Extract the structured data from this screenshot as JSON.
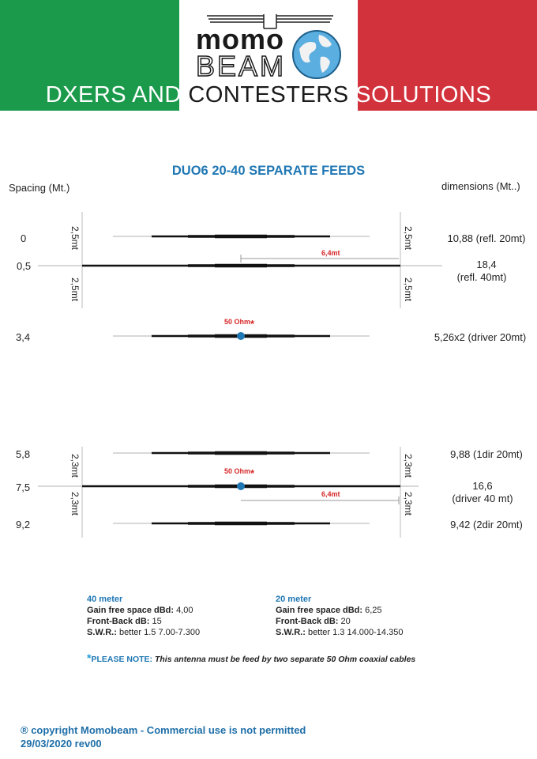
{
  "header": {
    "brand_top": "momo",
    "brand_bottom": "BEAM",
    "slogan_left": "DXERS AND ",
    "slogan_mid": "CONTESTERS",
    "slogan_right": " SOLUTIONS",
    "colors": {
      "green": "#1a9a4a",
      "white": "#ffffff",
      "red": "#d2323c"
    }
  },
  "title": "DUO6 20-40 SEPARATE FEEDS",
  "columns": {
    "left": "Spacing (Mt.)",
    "right": "dimensions (Mt..)"
  },
  "elements": [
    {
      "spacing": "0",
      "dimension": "10,88 (refl. 20mt)"
    },
    {
      "spacing": "0,5",
      "dimension": "18,4",
      "dimension2": "(refl. 40mt)"
    },
    {
      "spacing": "3,4",
      "dimension": "5,26x2 (driver 20mt)"
    },
    {
      "spacing": "5,8",
      "dimension": "9,88 (1dir 20mt)"
    },
    {
      "spacing": "7,5",
      "dimension": "16,6",
      "dimension2": "(driver 40 mt)"
    },
    {
      "spacing": "9,2",
      "dimension": "9,42 (2dir 20mt)"
    }
  ],
  "annotations": {
    "top_spacing": "2,5mt",
    "bottom_spacing": "2,3mt",
    "half_length": "6,4mt",
    "feed": "50 Ohm",
    "feed_mark": "*"
  },
  "specs40": {
    "heading": "40 meter",
    "gain_label": "Gain free space dBd:",
    "gain": " 4,00",
    "fb_label": "Front-Back dB:",
    "fb": " 15",
    "swr_label": "S.W.R.:",
    "swr": " better 1.5 7.00-7.300"
  },
  "specs20": {
    "heading": "20 meter",
    "gain_label": "Gain free space dBd:",
    "gain": " 6,25",
    "fb_label": "Front-Back dB:",
    "fb": " 20",
    "swr_label": "S.W.R.:",
    "swr": " better 1.3 14.000-14.350"
  },
  "note": {
    "mark": "*",
    "label": "PLEASE NOTE:",
    "text": " This antenna must be feed by two separate 50 Ohm coaxial cables"
  },
  "footer": {
    "copyright": "® copyright Momobeam - Commercial use is not permitted",
    "date": "29/03/2020 rev00"
  }
}
